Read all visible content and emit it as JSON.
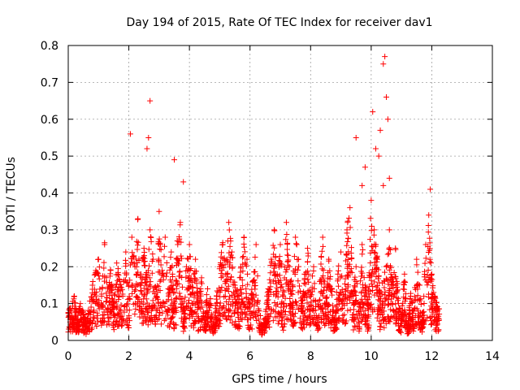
{
  "chart_data": {
    "type": "scatter",
    "title": "Day 194 of 2015, Rate Of TEC Index for receiver dav1",
    "xlabel": "GPS time / hours",
    "ylabel": "ROTI / TECUs",
    "xlim": [
      0,
      14
    ],
    "ylim": [
      0,
      0.8
    ],
    "xticks": [
      "0",
      "2",
      "4",
      "6",
      "8",
      "10",
      "12",
      "14"
    ],
    "yticks": [
      "0",
      "0.1",
      "0.2",
      "0.3",
      "0.4",
      "0.5",
      "0.6",
      "0.7",
      "0.8"
    ],
    "grid": true,
    "marker": "+",
    "color": "#ff0000",
    "series": [
      {
        "x": [
          0.1,
          0.2,
          0.3,
          0.4,
          0.5,
          0.6,
          0.8,
          0.9,
          1.0,
          1.1,
          1.2,
          1.3,
          1.4,
          1.5,
          1.6,
          1.7,
          1.8,
          1.9,
          2.0,
          2.1,
          2.2,
          2.3,
          2.4,
          2.5,
          2.6,
          2.7,
          2.8,
          2.9,
          3.0,
          3.1,
          3.2,
          3.3,
          3.4,
          3.5,
          3.6,
          3.7,
          3.8,
          3.9,
          4.0,
          4.1,
          4.2,
          4.3,
          4.4,
          4.5,
          4.6,
          4.7,
          4.8,
          4.9,
          5.0,
          5.1,
          5.2,
          5.3,
          5.4,
          5.5,
          5.6,
          5.7,
          5.8,
          5.9,
          6.0,
          6.1,
          6.2,
          6.3,
          6.4,
          6.5,
          6.6,
          6.7,
          6.8,
          6.9,
          7.0,
          7.1,
          7.2,
          7.3,
          7.4,
          7.5,
          7.6,
          7.7,
          7.8,
          7.9,
          8.0,
          8.1,
          8.2,
          8.3,
          8.4,
          8.5,
          8.6,
          8.7,
          8.8,
          8.9,
          9.0,
          9.1,
          9.2,
          9.3,
          9.4,
          9.5,
          9.6,
          9.7,
          9.8,
          9.9,
          10.0,
          10.1,
          10.2,
          10.3,
          10.4,
          10.5,
          10.6,
          10.7,
          10.8,
          10.9,
          11.0,
          11.1,
          11.2,
          11.3,
          11.4,
          11.5,
          11.6,
          11.7,
          11.8,
          11.9,
          12.0,
          12.1,
          12.2,
          2.05,
          2.65,
          2.7,
          2.6,
          3.5,
          3.8,
          9.5,
          10.05,
          10.15,
          10.3,
          10.4,
          10.45,
          10.5,
          10.55,
          10.6,
          10.25,
          9.7,
          9.8,
          11.95
        ],
        "y": [
          0.08,
          0.12,
          0.05,
          0.1,
          0.07,
          0.04,
          0.15,
          0.18,
          0.22,
          0.12,
          0.26,
          0.14,
          0.19,
          0.09,
          0.21,
          0.16,
          0.12,
          0.24,
          0.15,
          0.28,
          0.2,
          0.33,
          0.18,
          0.25,
          0.16,
          0.3,
          0.22,
          0.12,
          0.35,
          0.19,
          0.28,
          0.14,
          0.24,
          0.1,
          0.27,
          0.32,
          0.08,
          0.2,
          0.26,
          0.13,
          0.22,
          0.09,
          0.17,
          0.06,
          0.14,
          0.1,
          0.05,
          0.12,
          0.2,
          0.26,
          0.18,
          0.32,
          0.24,
          0.15,
          0.12,
          0.2,
          0.28,
          0.22,
          0.1,
          0.16,
          0.26,
          0.08,
          0.03,
          0.06,
          0.14,
          0.22,
          0.3,
          0.18,
          0.26,
          0.12,
          0.32,
          0.2,
          0.15,
          0.28,
          0.22,
          0.1,
          0.18,
          0.25,
          0.12,
          0.2,
          0.06,
          0.16,
          0.28,
          0.1,
          0.22,
          0.14,
          0.05,
          0.18,
          0.24,
          0.1,
          0.3,
          0.36,
          0.12,
          0.2,
          0.08,
          0.26,
          0.15,
          0.1,
          0.38,
          0.3,
          0.22,
          0.12,
          0.42,
          0.2,
          0.3,
          0.15,
          0.25,
          0.1,
          0.06,
          0.18,
          0.03,
          0.12,
          0.08,
          0.22,
          0.15,
          0.05,
          0.26,
          0.34,
          0.18,
          0.12,
          0.08,
          0.56,
          0.55,
          0.65,
          0.52,
          0.49,
          0.43,
          0.55,
          0.62,
          0.52,
          0.57,
          0.75,
          0.77,
          0.66,
          0.6,
          0.44,
          0.5,
          0.42,
          0.47,
          0.41
        ]
      }
    ]
  }
}
